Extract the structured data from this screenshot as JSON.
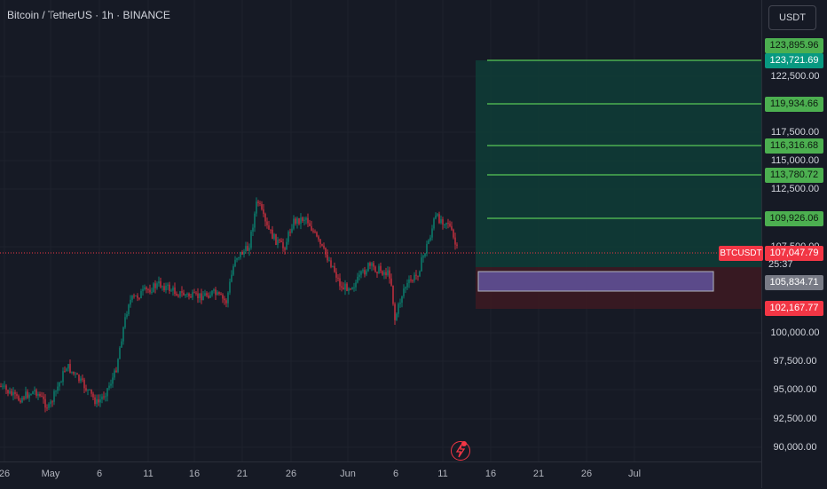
{
  "header": {
    "symbol": "Bitcoin / TetherUS · 1h · BINANCE"
  },
  "currency_button": "USDT",
  "price_axis": [
    "122,500.00",
    "117,500.00",
    "115,000.00",
    "112,500.00",
    "107,500.00",
    "100,000.00",
    "97,500.00",
    "95,000.00",
    "92,500.00",
    "90,000.00"
  ],
  "price_levels": [
    {
      "label": "123,895.96",
      "style": "green"
    },
    {
      "label": "123,721.69",
      "style": "teal"
    },
    {
      "label": "119,934.66",
      "style": "green"
    },
    {
      "label": "116,316.68",
      "style": "green"
    },
    {
      "label": "113,780.72",
      "style": "green"
    },
    {
      "label": "109,926.06",
      "style": "green"
    },
    {
      "label": "107,047.79",
      "style": "red"
    },
    {
      "label": "105,834.71",
      "style": "gray"
    },
    {
      "label": "102,167.77",
      "style": "red"
    }
  ],
  "current": {
    "ticker": "BTCUSDT",
    "price": "107,047.79",
    "countdown": "25:37"
  },
  "date_axis": [
    "26",
    "May",
    "6",
    "11",
    "16",
    "21",
    "26",
    "Jun",
    "6",
    "11",
    "16",
    "21",
    "26",
    "Jul"
  ],
  "colors": {
    "up": "#089981",
    "down": "#f23645",
    "target_line": "#4caf50",
    "profit_zone": "#0e3b36",
    "loss_zone": "#3b1a22",
    "entry_box": "#5b4a8a"
  },
  "icons": {
    "alert": "lightning-icon"
  }
}
